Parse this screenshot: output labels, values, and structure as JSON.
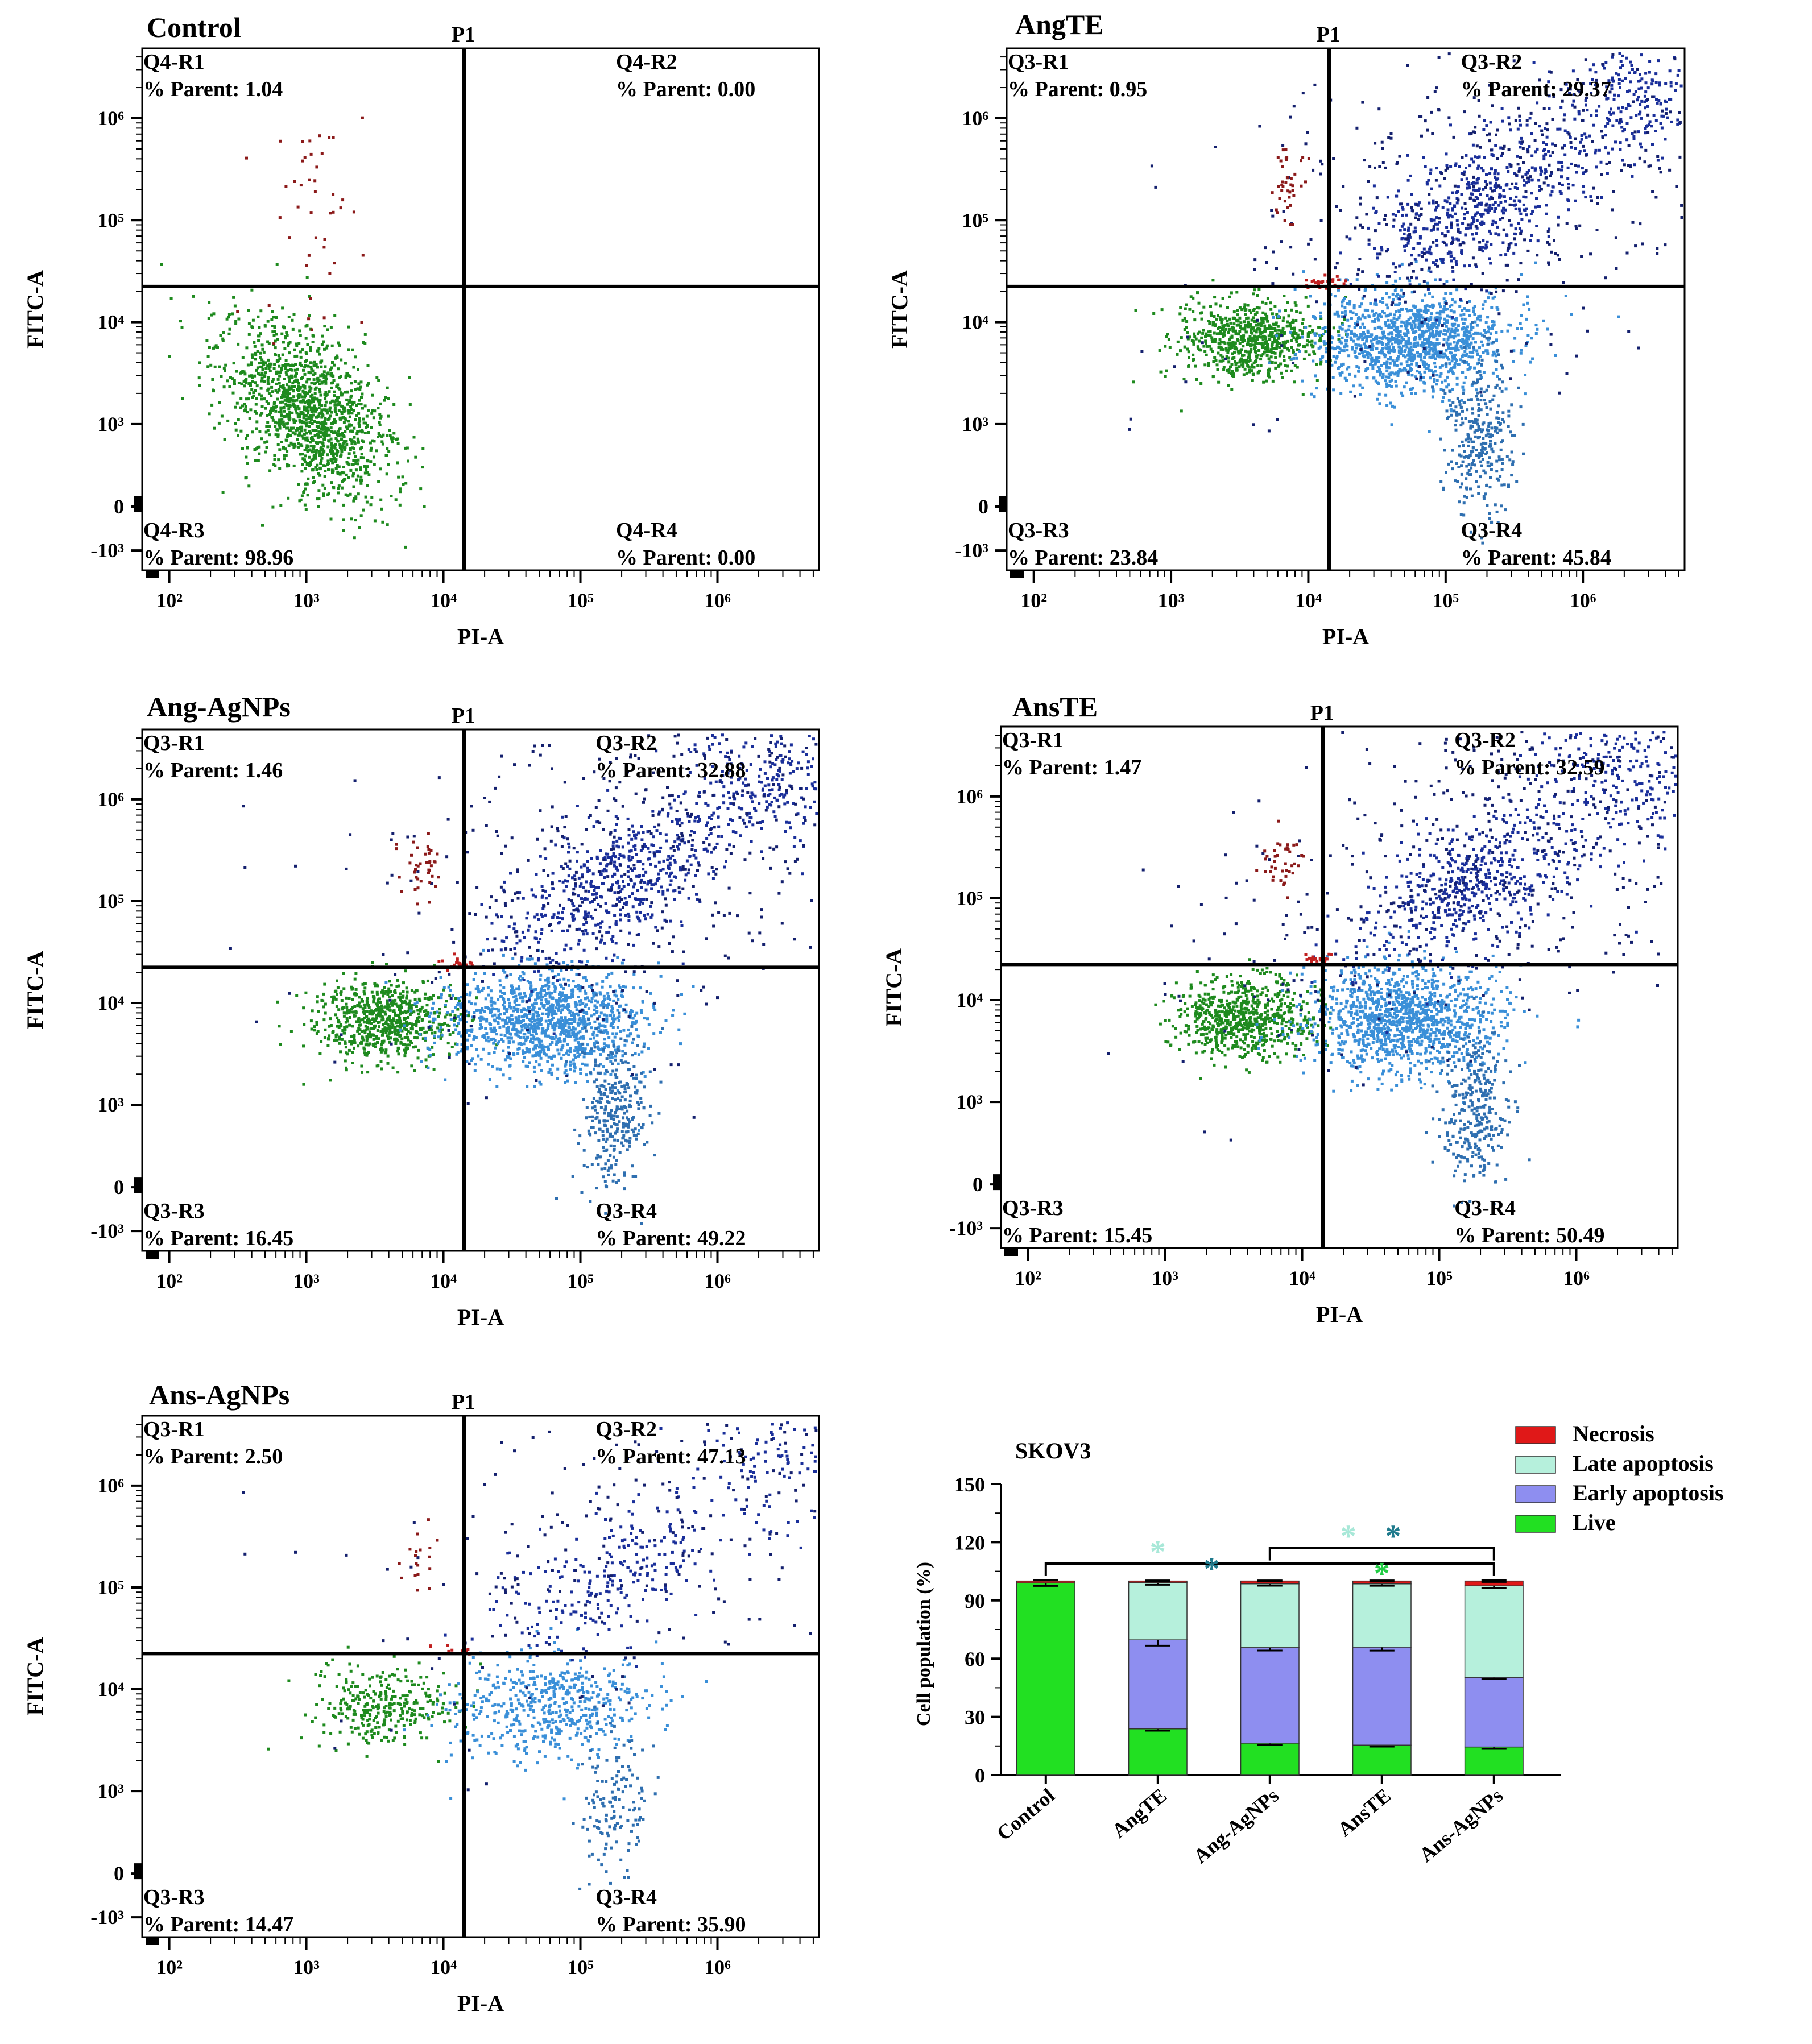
{
  "chart_data": [
    {
      "type": "scatter",
      "title": "Control",
      "gate_label": "P1",
      "xlabel": "PI-A",
      "ylabel": "FITC-A",
      "x_ticks": [
        "10²",
        "10³",
        "10⁴",
        "10⁵",
        "10⁶"
      ],
      "y_ticks": [
        "10⁶",
        "10⁵",
        "10⁴",
        "10³",
        "0",
        "-10³"
      ],
      "quadrants": [
        {
          "name": "Q4-R1",
          "text": "% Parent: 1.04",
          "value": 1.04
        },
        {
          "name": "Q4-R2",
          "text": "% Parent: 0.00",
          "value": 0.0
        },
        {
          "name": "Q4-R3",
          "text": "% Parent: 98.96",
          "value": 98.96
        },
        {
          "name": "Q4-R4",
          "text": "% Parent: 0.00",
          "value": 0.0
        }
      ]
    },
    {
      "type": "scatter",
      "title": "AngTE",
      "gate_label": "P1",
      "xlabel": "PI-A",
      "ylabel": "FITC-A",
      "x_ticks": [
        "10²",
        "10³",
        "10⁴",
        "10⁵",
        "10⁶"
      ],
      "y_ticks": [
        "10⁶",
        "10⁵",
        "10⁴",
        "10³",
        "0",
        "-10³"
      ],
      "quadrants": [
        {
          "name": "Q3-R1",
          "text": "% Parent: 0.95",
          "value": 0.95
        },
        {
          "name": "Q3-R2",
          "text": "% Parent: 29.37",
          "value": 29.37
        },
        {
          "name": "Q3-R3",
          "text": "% Parent: 23.84",
          "value": 23.84
        },
        {
          "name": "Q3-R4",
          "text": "% Parent: 45.84",
          "value": 45.84
        }
      ]
    },
    {
      "type": "scatter",
      "title": "Ang-AgNPs",
      "gate_label": "P1",
      "xlabel": "PI-A",
      "ylabel": "FITC-A",
      "x_ticks": [
        "10²",
        "10³",
        "10⁴",
        "10⁵",
        "10⁶"
      ],
      "y_ticks": [
        "10⁶",
        "10⁵",
        "10⁴",
        "10³",
        "0",
        "-10³"
      ],
      "quadrants": [
        {
          "name": "Q3-R1",
          "text": "% Parent: 1.46",
          "value": 1.46
        },
        {
          "name": "Q3-R2",
          "text": "% Parent: 32.88",
          "value": 32.88
        },
        {
          "name": "Q3-R3",
          "text": "% Parent: 16.45",
          "value": 16.45
        },
        {
          "name": "Q3-R4",
          "text": "% Parent: 49.22",
          "value": 49.22
        }
      ]
    },
    {
      "type": "scatter",
      "title": "AnsTE",
      "gate_label": "P1",
      "xlabel": "PI-A",
      "ylabel": "FITC-A",
      "x_ticks": [
        "10²",
        "10³",
        "10⁴",
        "10⁵",
        "10⁶"
      ],
      "y_ticks": [
        "10⁶",
        "10⁵",
        "10⁴",
        "10³",
        "0",
        "-10³"
      ],
      "quadrants": [
        {
          "name": "Q3-R1",
          "text": "% Parent: 1.47",
          "value": 1.47
        },
        {
          "name": "Q3-R2",
          "text": "% Parent: 32.59",
          "value": 32.59
        },
        {
          "name": "Q3-R3",
          "text": "% Parent: 15.45",
          "value": 15.45
        },
        {
          "name": "Q3-R4",
          "text": "% Parent: 50.49",
          "value": 50.49
        }
      ]
    },
    {
      "type": "scatter",
      "title": "Ans-AgNPs",
      "gate_label": "P1",
      "xlabel": "PI-A",
      "ylabel": "FITC-A",
      "x_ticks": [
        "10²",
        "10³",
        "10⁴",
        "10⁵",
        "10⁶"
      ],
      "y_ticks": [
        "10⁶",
        "10⁵",
        "10⁴",
        "10³",
        "0",
        "-10³"
      ],
      "quadrants": [
        {
          "name": "Q3-R1",
          "text": "% Parent: 2.50",
          "value": 2.5
        },
        {
          "name": "Q3-R2",
          "text": "% Parent: 47.13",
          "value": 47.13
        },
        {
          "name": "Q3-R3",
          "text": "% Parent: 14.47",
          "value": 14.47
        },
        {
          "name": "Q3-R4",
          "text": "% Parent: 35.90",
          "value": 35.9
        }
      ]
    },
    {
      "type": "bar",
      "stacked": true,
      "title": "SKOV3",
      "xlabel": "",
      "ylabel": "Cell population (%)",
      "ylim": [
        0,
        150
      ],
      "y_ticks": [
        "0",
        "30",
        "60",
        "90",
        "120",
        "150"
      ],
      "categories": [
        "Control",
        "AngTE",
        "Ang-AgNPs",
        "AnsTE",
        "Ans-AgNPs"
      ],
      "legend_position": "top-right",
      "series": [
        {
          "name": "Live",
          "color": "#22e022",
          "values": [
            98.96,
            23.84,
            16.45,
            15.45,
            14.47
          ],
          "errors": [
            1.5,
            1.0,
            1.0,
            0.8,
            1.0
          ]
        },
        {
          "name": "Early apoptosis",
          "color": "#8e8ef0",
          "values": [
            0.0,
            45.84,
            49.22,
            50.49,
            35.9
          ],
          "errors": [
            0,
            3.0,
            1.5,
            1.8,
            1.0
          ]
        },
        {
          "name": "Late apoptosis",
          "color": "#b6f0dc",
          "values": [
            0.0,
            29.37,
            32.88,
            32.59,
            47.13
          ],
          "errors": [
            0,
            1.0,
            1.0,
            1.0,
            1.0
          ]
        },
        {
          "name": "Necrosis",
          "color": "#e01818",
          "values": [
            1.04,
            0.95,
            1.46,
            1.47,
            2.5
          ],
          "errors": [
            0,
            0.3,
            0.3,
            0.3,
            0.5
          ]
        }
      ],
      "significance_marks": [
        {
          "symbol": "*",
          "color": "#a8e8d8"
        },
        {
          "symbol": "*",
          "color": "#1f7a8c"
        },
        {
          "symbol": "*",
          "color": "#a8e8d8"
        },
        {
          "symbol": "*",
          "color": "#1f7a8c"
        },
        {
          "symbol": "*",
          "color": "#22cc44"
        }
      ]
    }
  ]
}
